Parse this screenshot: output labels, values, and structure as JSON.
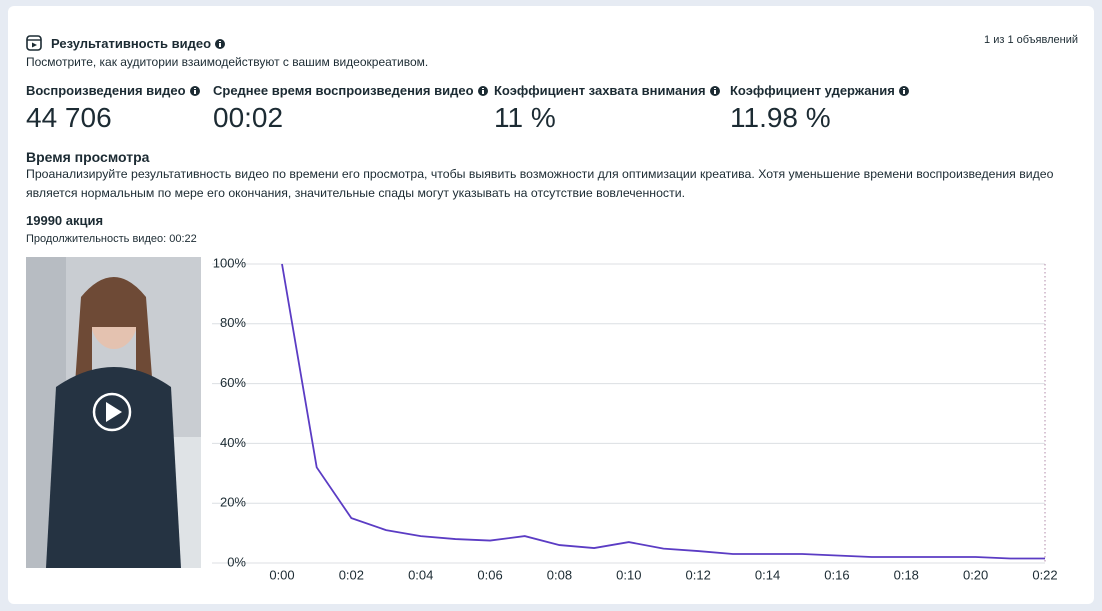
{
  "header": {
    "title": "Результативность видео",
    "subtitle": "Посмотрите, как аудитории взаимодействуют с вашим видеокреативом.",
    "counter": "1 из 1 объявлений"
  },
  "metrics": [
    {
      "label": "Воспроизведения видео",
      "value": "44 706"
    },
    {
      "label": "Среднее время воспроизведения видео",
      "value": "00:02"
    },
    {
      "label": "Коэффициент захвата внимания",
      "value": "11 %"
    },
    {
      "label": "Коэффициент удержания",
      "value": "11.98 %"
    }
  ],
  "section": {
    "title": "Время просмотра",
    "description": "Проанализируйте результативность видео по времени его просмотра, чтобы выявить возможности для оптимизации креатива. Хотя уменьшение времени воспроизведения видео является нормальным по мере его окончания, значительные спады могут указывать на отсутствие вовлеченности."
  },
  "video": {
    "title": "19990 акция",
    "duration": "Продолжительность видео: 00:22"
  },
  "chart_data": {
    "type": "line",
    "color": "#5b3cc4",
    "grid": true,
    "x": [
      0,
      1,
      2,
      3,
      4,
      5,
      6,
      7,
      8,
      9,
      10,
      11,
      12,
      13,
      14,
      15,
      16,
      17,
      18,
      19,
      20,
      21,
      22
    ],
    "values": [
      100,
      32,
      15,
      11,
      9,
      8,
      7.5,
      9,
      6,
      5,
      7,
      4.8,
      4,
      3,
      3,
      3,
      2.5,
      2,
      2,
      2,
      2,
      1.5,
      1.5
    ],
    "xlim": [
      0,
      22
    ],
    "xticks": [
      {
        "value": 0,
        "label": "0:00"
      },
      {
        "value": 2,
        "label": "0:02"
      },
      {
        "value": 4,
        "label": "0:04"
      },
      {
        "value": 6,
        "label": "0:06"
      },
      {
        "value": 8,
        "label": "0:08"
      },
      {
        "value": 10,
        "label": "0:10"
      },
      {
        "value": 12,
        "label": "0:12"
      },
      {
        "value": 14,
        "label": "0:14"
      },
      {
        "value": 16,
        "label": "0:16"
      },
      {
        "value": 18,
        "label": "0:18"
      },
      {
        "value": 20,
        "label": "0:20"
      },
      {
        "value": 22,
        "label": "0:22"
      }
    ],
    "ylim": [
      0,
      100
    ],
    "yticks": [
      {
        "value": 0,
        "label": "0%"
      },
      {
        "value": 20,
        "label": "20%"
      },
      {
        "value": 40,
        "label": "40%"
      },
      {
        "value": 60,
        "label": "60%"
      },
      {
        "value": 80,
        "label": "80%"
      },
      {
        "value": 100,
        "label": "100%"
      }
    ]
  }
}
